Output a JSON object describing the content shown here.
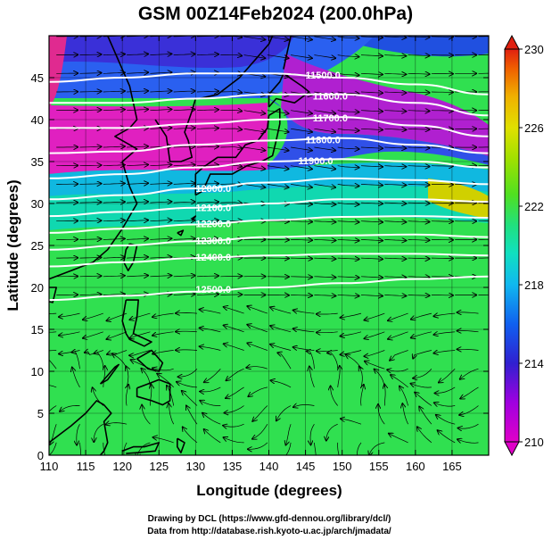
{
  "title": "GSM 00Z14Feb2024 (200.0hPa)",
  "xlabel": "Longitude (degrees)",
  "ylabel": "Latitude (degrees)",
  "x_ticks": [
    "110",
    "115",
    "120",
    "125",
    "130",
    "135",
    "140",
    "145",
    "150",
    "155",
    "160",
    "165"
  ],
  "y_ticks": [
    "0",
    "5",
    "10",
    "15",
    "20",
    "25",
    "30",
    "35",
    "40",
    "45"
  ],
  "colorbar": {
    "ticks": [
      "210",
      "214",
      "218",
      "222",
      "226",
      "230"
    ],
    "range": [
      210,
      230
    ],
    "colors": [
      "#e000c8",
      "#a000e0",
      "#3020d0",
      "#1060f0",
      "#10b8f0",
      "#10e0c0",
      "#20e080",
      "#50e020",
      "#a0e000",
      "#e0e000",
      "#f0b000",
      "#f06000",
      "#e02010"
    ]
  },
  "contours": {
    "labels": [
      "11500.0",
      "11600.0",
      "11700.0",
      "11800.0",
      "11900.0",
      "12000.0",
      "12100.0",
      "12200.0",
      "12300.0",
      "12400.0",
      "12500.0"
    ]
  },
  "credits": {
    "line1": "Drawing by DCL (https://www.gfd-dennou.org/library/dcl/)",
    "line2": "Data from http://database.rish.kyoto-u.ac.jp/arch/jmadata/"
  },
  "map": {
    "lon_range": [
      110,
      170
    ],
    "lat_range": [
      0,
      50
    ],
    "field": "temperature (K) with height contours and streamlines"
  }
}
